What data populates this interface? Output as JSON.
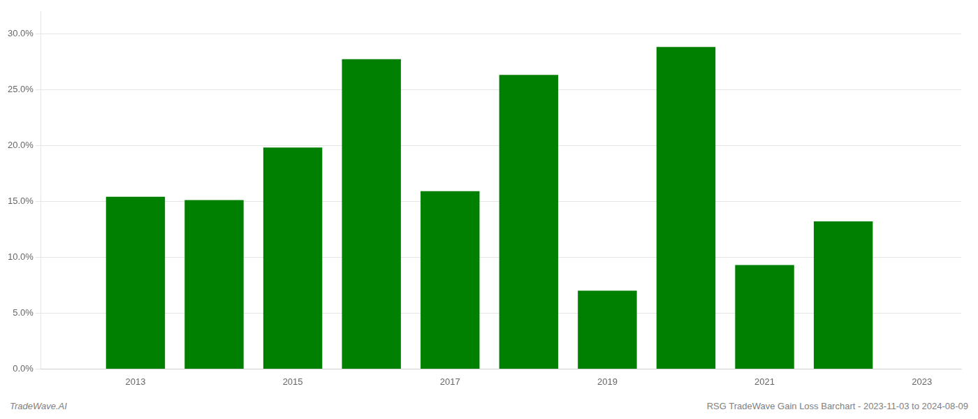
{
  "chart_data": {
    "type": "bar",
    "x": [
      2013,
      2014,
      2015,
      2016,
      2017,
      2018,
      2019,
      2020,
      2021,
      2022
    ],
    "values": [
      0.154,
      0.151,
      0.198,
      0.277,
      0.159,
      0.263,
      0.07,
      0.288,
      0.093,
      0.132
    ],
    "color": "#008000",
    "xlim": [
      2011.8,
      2023.5
    ],
    "xticks": [
      2013,
      2015,
      2017,
      2019,
      2021,
      2023
    ],
    "ylim": [
      0,
      0.32
    ],
    "yticks": [
      {
        "value": 0.0,
        "label": "0.0%"
      },
      {
        "value": 0.05,
        "label": "5.0%"
      },
      {
        "value": 0.1,
        "label": "10.0%"
      },
      {
        "value": 0.15,
        "label": "15.0%"
      },
      {
        "value": 0.2,
        "label": "20.0%"
      },
      {
        "value": 0.25,
        "label": "25.0%"
      },
      {
        "value": 0.3,
        "label": "30.0%"
      }
    ],
    "grid": "y",
    "annotations": [
      "TradeWave.AI",
      "RSG TradeWave Gain Loss Barchart - 2023-11-03 to 2024-08-09"
    ]
  }
}
